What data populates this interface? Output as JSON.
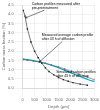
{
  "chart_data": {
    "type": "line",
    "xlabel": "Depth (μm)",
    "ylabel": "Carbon mass fraction (%)",
    "xlim": [
      0,
      3000
    ],
    "ylim": [
      0,
      4.5
    ],
    "xticks": [
      0,
      500,
      1000,
      1500,
      2000,
      2500,
      3000
    ],
    "yticks": [
      {
        "value": 0,
        "label": "0.0"
      },
      0.5,
      {
        "value": 1.0,
        "label": "1.0"
      },
      1.5,
      {
        "value": 2.0,
        "label": "2.0"
      },
      2.5,
      {
        "value": 3.0,
        "label": "3.0"
      },
      3.5,
      {
        "value": 4.0,
        "label": "4.0"
      },
      4.5
    ],
    "grid": true,
    "series": [
      {
        "color": "#00aacc",
        "marker": "none",
        "line_style": "solid",
        "x": [
          0,
          100,
          200,
          400,
          600,
          800,
          1000,
          1200,
          1400,
          1600,
          1800,
          2000,
          2200,
          2400,
          2600,
          2800,
          3000
        ],
        "values": [
          1.58,
          1.56,
          1.54,
          1.5,
          1.45,
          1.39,
          1.32,
          1.24,
          1.15,
          1.05,
          0.95,
          0.84,
          0.73,
          0.63,
          0.53,
          0.43,
          0.35
        ]
      },
      {
        "color": "#222222",
        "marker": "square",
        "line_style": "solid",
        "x": [
          30,
          100,
          200,
          350,
          500,
          650,
          800,
          950,
          1100,
          1300,
          1500,
          1700,
          1900,
          2100,
          2400,
          2700
        ],
        "values": [
          4.2,
          3.9,
          3.2,
          2.5,
          2.0,
          1.65,
          1.35,
          1.1,
          0.9,
          0.72,
          0.58,
          0.46,
          0.37,
          0.3,
          0.22,
          0.16
        ]
      },
      {
        "color": "#666666",
        "marker": "square",
        "line_style": "solid",
        "x": [
          30,
          200,
          450,
          700,
          950,
          1200,
          1500,
          1750,
          2050,
          2350,
          2700,
          3000
        ],
        "values": [
          1.55,
          1.52,
          1.47,
          1.42,
          1.35,
          1.26,
          1.15,
          1.04,
          0.9,
          0.76,
          0.6,
          0.45
        ]
      }
    ],
    "annotations": [
      {
        "text": "Carbon profiles measured after\npre-pretreatment",
        "xy": [
          120,
          3.8
        ],
        "xytext": [
          380,
          4.25
        ]
      },
      {
        "text": "Measured average carbon profile\nafter 43 h of diffusion",
        "xy": [
          700,
          1.42
        ],
        "xytext": [
          800,
          2.55
        ]
      },
      {
        "text": "Simulated carbon profiles\nafter 43 h of diffusion",
        "xy": [
          2200,
          0.73
        ],
        "xytext": [
          1400,
          0.55
        ]
      }
    ]
  }
}
